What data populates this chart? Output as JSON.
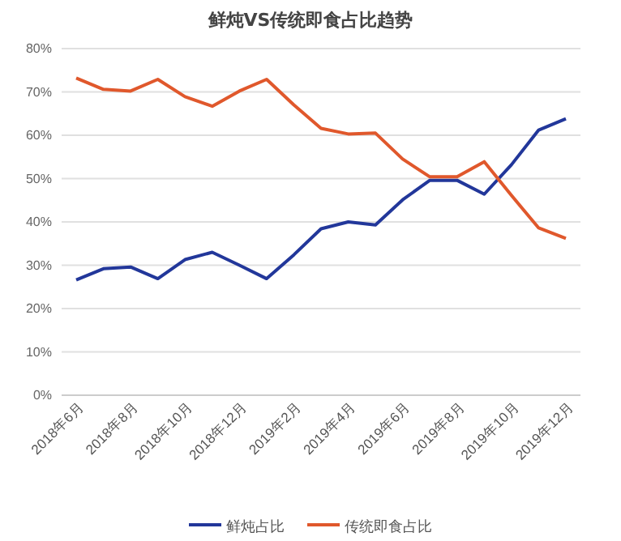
{
  "chart_data": {
    "type": "line",
    "title": "鲜炖VS传统即食占比趋势",
    "categories": [
      "2018年6月",
      null,
      "2018年8月",
      null,
      "2018年10月",
      null,
      "2018年12月",
      null,
      "2019年2月",
      null,
      "2019年4月",
      null,
      "2019年6月",
      null,
      "2019年8月",
      null,
      "2019年10月",
      null,
      "2019年12月"
    ],
    "series": [
      {
        "name": "鲜炖占比",
        "color": "#22379a",
        "values": [
          26.6,
          29.2,
          29.6,
          26.9,
          31.3,
          33,
          30,
          26.9,
          32.4,
          38.4,
          40,
          39.3,
          45.1,
          49.6,
          49.6,
          46.4,
          53.2,
          61.2,
          63.8
        ]
      },
      {
        "name": "传统即食占比",
        "color": "#e0582c",
        "values": [
          73.2,
          70.6,
          70.2,
          72.9,
          68.9,
          66.7,
          70.2,
          72.9,
          67,
          61.6,
          60.3,
          60.5,
          54.5,
          50.4,
          50.4,
          53.9,
          46.1,
          38.6,
          36.2
        ]
      }
    ],
    "ylim": [
      0,
      80
    ],
    "yticks": [
      {
        "value": 0,
        "label": "0%"
      },
      {
        "value": 10,
        "label": "10%"
      },
      {
        "value": 20,
        "label": "20%"
      },
      {
        "value": 30,
        "label": "30%"
      },
      {
        "value": 40,
        "label": "40%"
      },
      {
        "value": 50,
        "label": "50%"
      },
      {
        "value": 60,
        "label": "60%"
      },
      {
        "value": 70,
        "label": "70%"
      },
      {
        "value": 80,
        "label": "80%"
      }
    ],
    "grid": "y",
    "legend": "bottom",
    "marker": "none",
    "line_style": "solid"
  }
}
